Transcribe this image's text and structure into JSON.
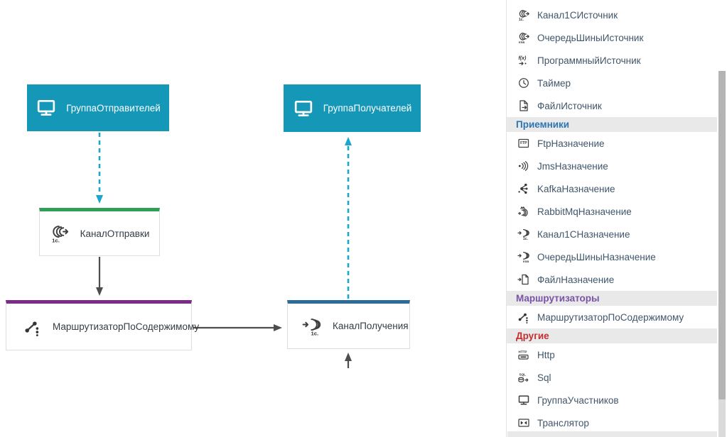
{
  "canvas": {
    "nodes": {
      "senders_group": {
        "label": "ГруппаОтправителей",
        "icon": "monitor-icon"
      },
      "receivers_group": {
        "label": "ГруппаПолучателей",
        "icon": "monitor-icon"
      },
      "send_channel": {
        "label": "КаналОтправки",
        "icon": "channel-1c-source-icon",
        "accent": "#2f9e57"
      },
      "content_router": {
        "label": "МаршрутизаторПоСодержимому",
        "icon": "content-router-icon",
        "accent": "#7b2c88"
      },
      "receive_channel": {
        "label": "КаналПолучения",
        "icon": "channel-1c-destination-icon",
        "accent": "#2d6c98"
      }
    },
    "colors": {
      "group_fill": "#1598b8",
      "dashed_link": "#1ba7c9",
      "solid_link": "#4d4d4d"
    }
  },
  "palette": {
    "sections": [
      {
        "header": null,
        "items": [
          {
            "label": "Канал1СИсточник",
            "icon": "channel-1c-source-icon"
          },
          {
            "label": "ОчередьШиныИсточник",
            "icon": "bus-queue-source-icon"
          },
          {
            "label": "ПрограммныйИсточник",
            "icon": "program-source-icon"
          },
          {
            "label": "Таймер",
            "icon": "timer-icon"
          },
          {
            "label": "ФайлИсточник",
            "icon": "file-source-icon"
          }
        ]
      },
      {
        "header": {
          "label": "Приемники",
          "color": "#2e74b5"
        },
        "items": [
          {
            "label": "FtpНазначение",
            "icon": "ftp-destination-icon"
          },
          {
            "label": "JmsНазначение",
            "icon": "jms-destination-icon"
          },
          {
            "label": "KafkaНазначение",
            "icon": "kafka-destination-icon"
          },
          {
            "label": "RabbitMqНазначение",
            "icon": "rabbitmq-destination-icon"
          },
          {
            "label": "Канал1СНазначение",
            "icon": "channel-1c-destination-icon"
          },
          {
            "label": "ОчередьШиныНазначение",
            "icon": "bus-queue-destination-icon"
          },
          {
            "label": "ФайлНазначение",
            "icon": "file-destination-icon"
          }
        ]
      },
      {
        "header": {
          "label": "Маршрутизаторы",
          "color": "#7a52a8"
        },
        "items": [
          {
            "label": "МаршрутизаторПоСодержимому",
            "icon": "content-router-icon"
          }
        ]
      },
      {
        "header": {
          "label": "Другие",
          "color": "#c22f2f"
        },
        "items": [
          {
            "label": "Http",
            "icon": "http-icon"
          },
          {
            "label": "Sql",
            "icon": "sql-icon"
          },
          {
            "label": "ГруппаУчастников",
            "icon": "participants-group-icon"
          },
          {
            "label": "Транслятор",
            "icon": "translator-icon"
          }
        ]
      }
    ]
  }
}
